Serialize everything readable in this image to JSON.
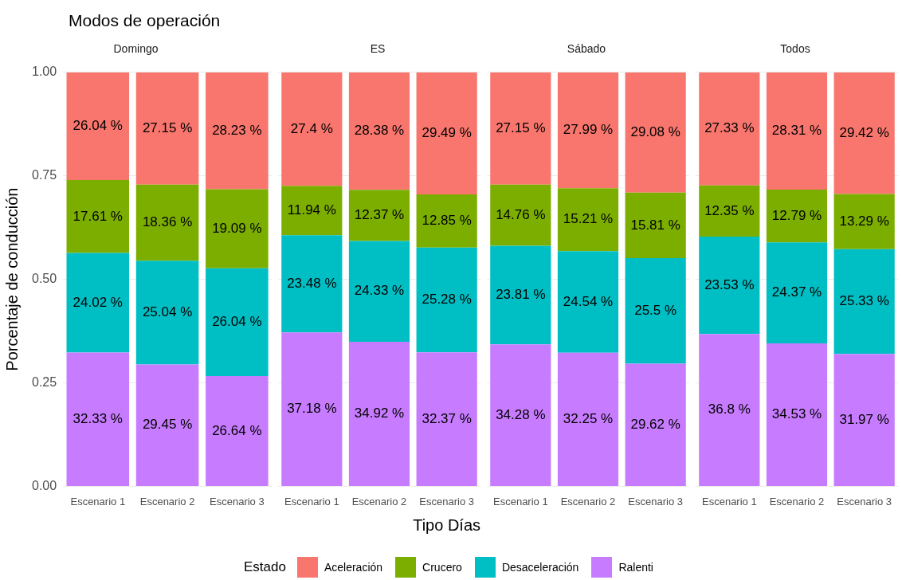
{
  "chart_data": [
    {
      "type": "bar",
      "title": "Modos de operación",
      "subtitle": "Domingo",
      "ylabel": "Porcentaje de conducción",
      "legend_title": "Estado",
      "legend": "bottom",
      "stacked": true,
      "grid": true,
      "categories": [
        "Escenario 1",
        "Escenario 2",
        "Escenario 3"
      ],
      "ylim": [
        0,
        1
      ],
      "yticks": [
        {
          "value": 0,
          "label": "0.00"
        },
        {
          "value": 0.25,
          "label": "0.25"
        },
        {
          "value": 0.5,
          "label": "0.50"
        },
        {
          "value": 0.75,
          "label": "0.75"
        },
        {
          "value": 1,
          "label": "1.00"
        }
      ],
      "series": [
        {
          "name": "Ralenti",
          "color": "#c77cff",
          "values": [
            0.3233,
            0.2945,
            0.2664
          ],
          "value_labels": [
            "32.33 %",
            "29.45 %",
            "26.64 %"
          ]
        },
        {
          "name": "Desaceleración",
          "color": "#00bfc4",
          "values": [
            0.2402,
            0.2504,
            0.2604
          ],
          "value_labels": [
            "24.02 %",
            "25.04 %",
            "26.04 %"
          ]
        },
        {
          "name": "Crucero",
          "color": "#7cae00",
          "values": [
            0.1761,
            0.1836,
            0.1909
          ],
          "value_labels": [
            "17.61 %",
            "18.36 %",
            "19.09 %"
          ]
        },
        {
          "name": "Aceleración",
          "color": "#f8766d",
          "values": [
            0.2604,
            0.2715,
            0.2823
          ],
          "value_labels": [
            "26.04 %",
            "27.15 %",
            "28.23 %"
          ]
        }
      ]
    },
    {
      "type": "bar",
      "subtitle": "ES",
      "xlabel": "Tipo Días",
      "stacked": true,
      "grid": true,
      "tick_labels": "x",
      "categories": [
        "Escenario 1",
        "Escenario 2",
        "Escenario 3"
      ],
      "ylim": [
        0,
        1
      ],
      "yticks": [
        0,
        0.25,
        0.5,
        0.75,
        1
      ],
      "series": [
        {
          "color": "#c77cff",
          "values": [
            0.3718,
            0.3492,
            0.3237
          ],
          "value_labels": [
            "37.18 %",
            "34.92 %",
            "32.37 %"
          ]
        },
        {
          "color": "#00bfc4",
          "values": [
            0.2348,
            0.2433,
            0.2528
          ],
          "value_labels": [
            "23.48 %",
            "24.33 %",
            "25.28 %"
          ]
        },
        {
          "color": "#7cae00",
          "values": [
            0.1194,
            0.1237,
            0.1285
          ],
          "value_labels": [
            "11.94 %",
            "12.37 %",
            "12.85 %"
          ]
        },
        {
          "color": "#f8766d",
          "values": [
            0.274,
            0.2838,
            0.2949
          ],
          "value_labels": [
            "27.4 %",
            "28.38 %",
            "29.49 %"
          ]
        }
      ]
    },
    {
      "type": "bar",
      "subtitle": "Sábado",
      "stacked": true,
      "grid": true,
      "tick_labels": "x",
      "categories": [
        "Escenario 1",
        "Escenario 2",
        "Escenario 3"
      ],
      "ylim": [
        0,
        1
      ],
      "yticks": [
        0,
        0.25,
        0.5,
        0.75,
        1
      ],
      "series": [
        {
          "color": "#c77cff",
          "values": [
            0.3428,
            0.3225,
            0.2962
          ],
          "value_labels": [
            "34.28 %",
            "32.25 %",
            "29.62 %"
          ]
        },
        {
          "color": "#00bfc4",
          "values": [
            0.2381,
            0.2454,
            0.255
          ],
          "value_labels": [
            "23.81 %",
            "24.54 %",
            "25.5 %"
          ]
        },
        {
          "color": "#7cae00",
          "values": [
            0.1476,
            0.1521,
            0.1581
          ],
          "value_labels": [
            "14.76 %",
            "15.21 %",
            "15.81 %"
          ]
        },
        {
          "color": "#f8766d",
          "values": [
            0.2715,
            0.2799,
            0.2908
          ],
          "value_labels": [
            "27.15 %",
            "27.99 %",
            "29.08 %"
          ]
        }
      ]
    },
    {
      "type": "bar",
      "subtitle": "Todos",
      "stacked": true,
      "grid": true,
      "tick_labels": "x",
      "categories": [
        "Escenario 1",
        "Escenario 2",
        "Escenario 3"
      ],
      "ylim": [
        0,
        1
      ],
      "yticks": [
        0,
        0.25,
        0.5,
        0.75,
        1
      ],
      "series": [
        {
          "color": "#c77cff",
          "values": [
            0.368,
            0.3453,
            0.3197
          ],
          "value_labels": [
            "36.8 %",
            "34.53 %",
            "31.97 %"
          ]
        },
        {
          "color": "#00bfc4",
          "values": [
            0.2353,
            0.2437,
            0.2533
          ],
          "value_labels": [
            "23.53 %",
            "24.37 %",
            "25.33 %"
          ]
        },
        {
          "color": "#7cae00",
          "values": [
            0.1235,
            0.1279,
            0.1329
          ],
          "value_labels": [
            "12.35 %",
            "12.79 %",
            "13.29 %"
          ]
        },
        {
          "color": "#f8766d",
          "values": [
            0.2733,
            0.2831,
            0.2942
          ],
          "value_labels": [
            "27.33 %",
            "28.31 %",
            "29.42 %"
          ]
        }
      ]
    }
  ]
}
